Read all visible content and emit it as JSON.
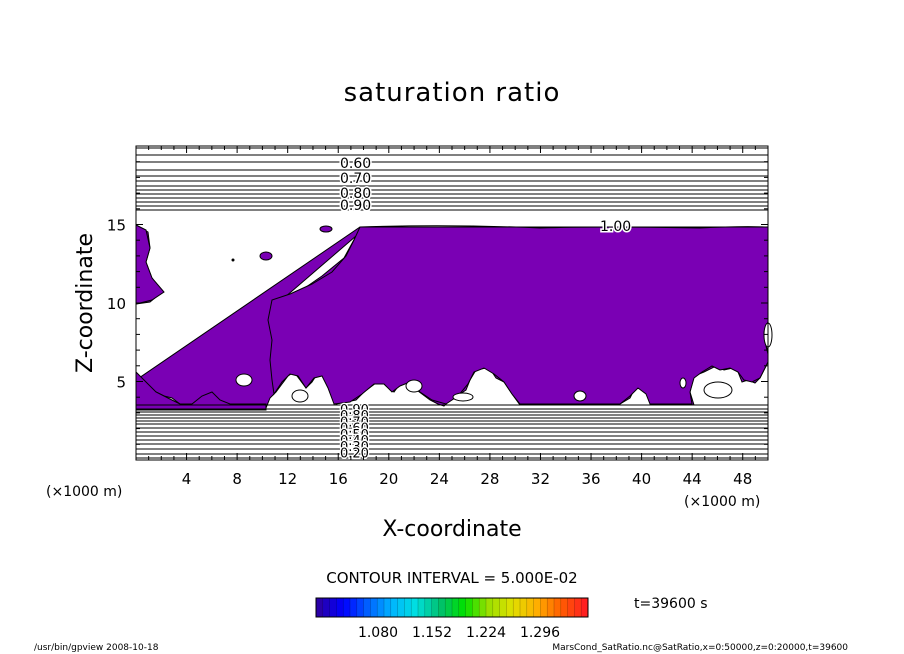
{
  "chart_data": {
    "type": "contour",
    "title": "saturation ratio",
    "xlabel": "X-coordinate",
    "ylabel": "Z-coordinate",
    "x_unit": "(×1000 m)",
    "y_unit": "(×1000 m)",
    "xlim": [
      0,
      50
    ],
    "ylim": [
      0,
      20
    ],
    "x_ticks": [
      4,
      8,
      12,
      16,
      20,
      24,
      28,
      32,
      36,
      40,
      44,
      48
    ],
    "y_ticks": [
      5,
      10,
      15
    ],
    "shaded_region_color": "#7a00b4",
    "contour_labels_upper": [
      "0.60",
      "0.70",
      "0.80",
      "0.90"
    ],
    "contour_label_mid": "1.00",
    "contour_labels_lower": [
      "0.90",
      "0.80",
      "0.70",
      "0.60",
      "0.50",
      "0.40",
      "0.30",
      "0.20"
    ],
    "contour_interval_text": "CONTOUR INTERVAL = 5.000E-02",
    "time_text": "t=39600 s",
    "colorbar": {
      "tick_labels": [
        "1.080",
        "1.152",
        "1.224",
        "1.296"
      ],
      "colors": [
        "#2a00a8",
        "#0000ff",
        "#0060ff",
        "#00b4ff",
        "#00e0e0",
        "#00c070",
        "#00e000",
        "#9ae000",
        "#e0e000",
        "#ffb000",
        "#ff6000",
        "#ff2020"
      ]
    },
    "footer_left": "/usr/bin/gpview   2008-10-18",
    "footer_right": "MarsCond_SatRatio.nc@SatRatio,x=0:50000,z=0:20000,t=39600"
  }
}
